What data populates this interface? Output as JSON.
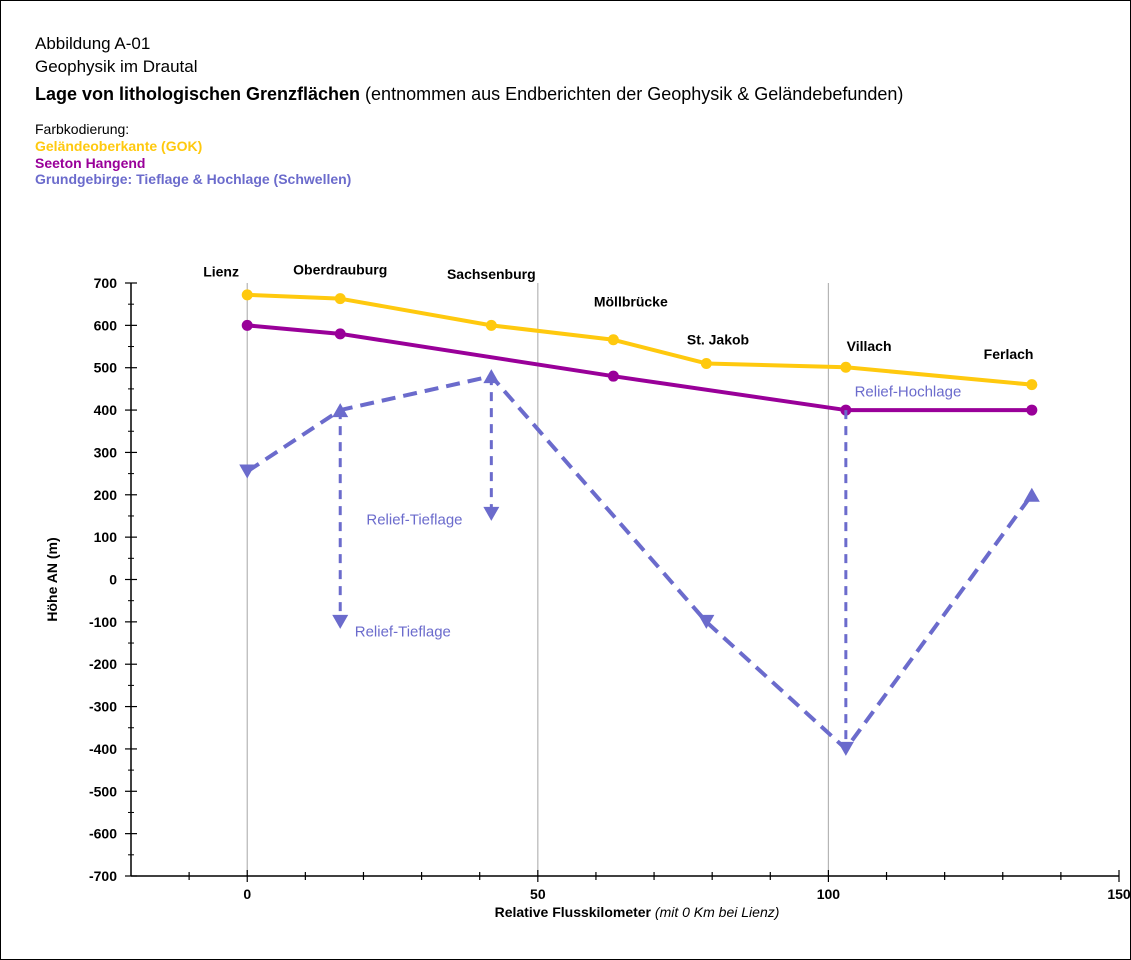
{
  "figure": {
    "line1": "Abbildung A-01",
    "line2": "Geophysik im Drautal",
    "line3_bold": "Lage von lithologischen Grenzflächen",
    "line3_rest": " (entnommen aus Endberichten der Geophysik & Geländebefunden)"
  },
  "legend": {
    "title": "Farbkodierung:",
    "items": [
      {
        "label": "Geländeoberkante (GOK)",
        "color": "#FFC90E"
      },
      {
        "label": "Seeton Hangend",
        "color": "#990099"
      },
      {
        "label": "Grundgebirge: Tieflage & Hochlage (Schwellen)",
        "color": "#6B6BCC"
      }
    ]
  },
  "chart_data": {
    "type": "line",
    "xlabel_bold": "Relative Flusskilometer",
    "xlabel_italic": "(mit 0 Km bei Lienz)",
    "ylabel": "Höhe AN (m)",
    "xlim": [
      -20,
      150
    ],
    "ylim": [
      -700,
      700
    ],
    "xticks": [
      0,
      50,
      100,
      150
    ],
    "yticks": [
      700,
      600,
      500,
      400,
      300,
      200,
      100,
      0,
      -100,
      -200,
      -300,
      -400,
      -500,
      -600,
      -700
    ],
    "grid_x": [
      0,
      50,
      100
    ],
    "series": [
      {
        "name": "Geländeoberkante (GOK)",
        "color": "#FFC90E",
        "x": [
          0,
          16,
          42,
          63,
          79,
          103,
          135
        ],
        "y": [
          672,
          663,
          600,
          566,
          510,
          501,
          460
        ]
      },
      {
        "name": "Seeton Hangend",
        "color": "#990099",
        "x": [
          0,
          16,
          63,
          103,
          135
        ],
        "y": [
          600,
          580,
          480,
          400,
          400
        ]
      }
    ],
    "basement": {
      "name": "Grundgebirge: Tieflage & Hochlage (Schwellen)",
      "color": "#6B6BCC",
      "main_line": {
        "x": [
          0,
          16,
          42,
          79,
          103,
          135
        ],
        "y": [
          255,
          400,
          480,
          -100,
          -400,
          200
        ]
      },
      "verticals": [
        {
          "x": 16,
          "y_from": 400,
          "y_to": -100
        },
        {
          "x": 42,
          "y_from": 480,
          "y_to": 155
        },
        {
          "x": 103,
          "y_from": 400,
          "y_to": -400
        }
      ],
      "down_arrows": [
        {
          "x": 0,
          "y": 255
        },
        {
          "x": 16,
          "y": -100
        },
        {
          "x": 42,
          "y": 155
        },
        {
          "x": 79,
          "y": -100
        },
        {
          "x": 103,
          "y": -400
        }
      ],
      "up_arrows": [
        {
          "x": 16,
          "y": 400
        },
        {
          "x": 42,
          "y": 480
        },
        {
          "x": 135,
          "y": 200
        }
      ]
    },
    "places": [
      {
        "text": "Lienz",
        "x": -4.5,
        "y": 715
      },
      {
        "text": "Oberdrauburg",
        "x": 16,
        "y": 720
      },
      {
        "text": "Sachsenburg",
        "x": 42,
        "y": 710
      },
      {
        "text": "Möllbrücke",
        "x": 66,
        "y": 645
      },
      {
        "text": "St. Jakob",
        "x": 81,
        "y": 555
      },
      {
        "text": "Villach",
        "x": 107,
        "y": 540
      },
      {
        "text": "Ferlach",
        "x": 131,
        "y": 520
      }
    ],
    "annotations": [
      {
        "text": "Relief-Hochlage",
        "x": 104.5,
        "y": 432
      },
      {
        "text": "Relief-Tieflage",
        "x": 20.5,
        "y": 130
      },
      {
        "text": "Relief-Tieflage",
        "x": 18.5,
        "y": -135
      }
    ]
  }
}
